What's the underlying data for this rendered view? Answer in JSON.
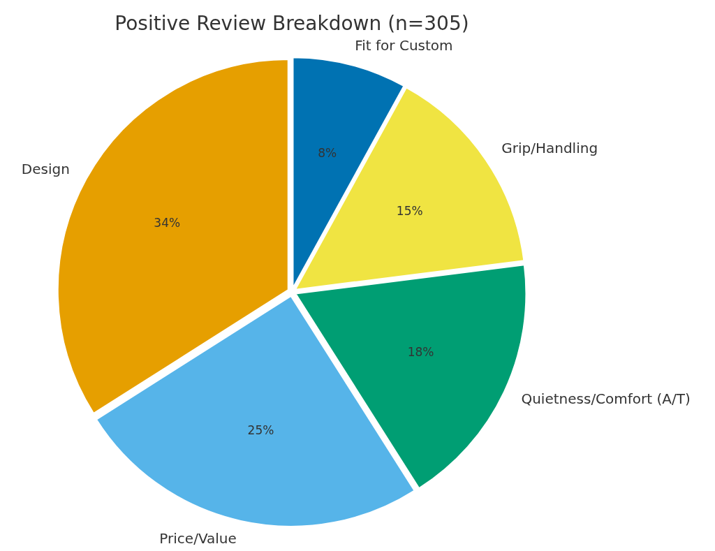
{
  "chart_data": {
    "type": "pie",
    "title": "Positive Review Breakdown (n=305)",
    "categories": [
      "Fit for Custom",
      "Grip/Handling",
      "Quietness/Comfort (A/T)",
      "Price/Value",
      "Design"
    ],
    "values": [
      8,
      15,
      18,
      25,
      34
    ],
    "colors": [
      "#0072b2",
      "#f0e442",
      "#009e73",
      "#56b4e9",
      "#e69f00"
    ],
    "value_labels": [
      "8%",
      "15%",
      "18%",
      "25%",
      "34%"
    ]
  }
}
